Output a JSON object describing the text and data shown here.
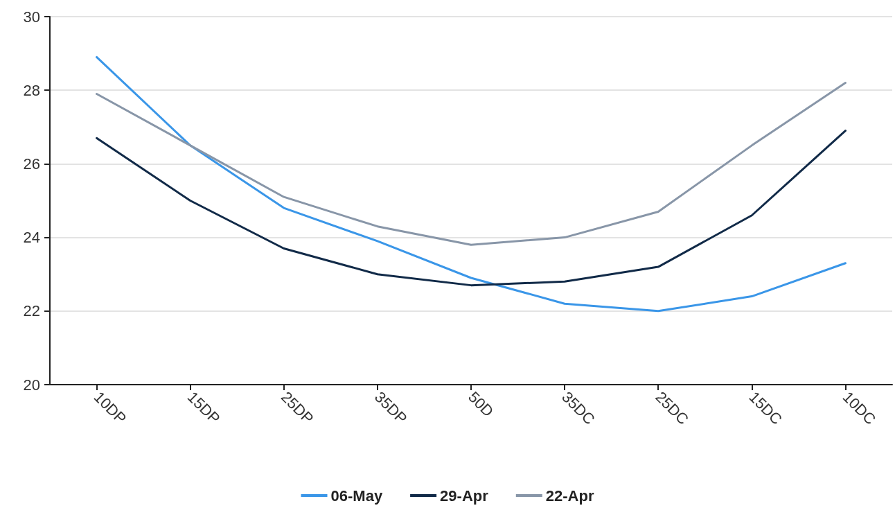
{
  "chart_data": {
    "type": "line",
    "categories": [
      "10DP",
      "15DP",
      "25DP",
      "35DP",
      "50D",
      "35DC",
      "25DC",
      "15DC",
      "10DC"
    ],
    "series": [
      {
        "name": "06-May",
        "color": "#3a96e8",
        "values": [
          28.9,
          26.5,
          24.8,
          23.9,
          22.9,
          22.2,
          22.0,
          22.4,
          23.3
        ]
      },
      {
        "name": "29-Apr",
        "color": "#112a48",
        "values": [
          26.7,
          25.0,
          23.7,
          23.0,
          22.7,
          22.8,
          23.2,
          24.6,
          26.9
        ]
      },
      {
        "name": "22-Apr",
        "color": "#8896a8",
        "values": [
          27.9,
          26.5,
          25.1,
          24.3,
          23.8,
          24.0,
          24.7,
          26.5,
          28.2
        ]
      }
    ],
    "ylim": [
      20,
      30
    ],
    "yticks": [
      20,
      22,
      24,
      26,
      28,
      30
    ],
    "grid": "y",
    "legend": "bottom",
    "marker": "none",
    "line_style": "solid"
  }
}
